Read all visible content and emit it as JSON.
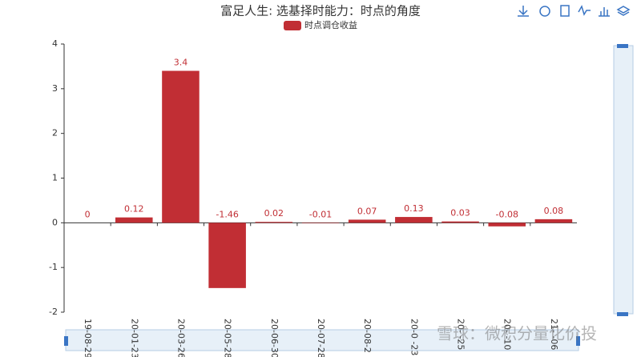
{
  "chart_data": {
    "type": "bar",
    "title": "富足人生: 选基择时能力：时点的角度",
    "categories": [
      "19-08-29",
      "20-01-23",
      "20-03-26",
      "20-05-28",
      "20-06-30",
      "20-07-28",
      "20-08-2",
      "20-0 -23",
      "20-  -25",
      "20-  -10",
      "21-  -06"
    ],
    "series": [
      {
        "name": "时点调仓收益",
        "color": "#c12e34",
        "values": [
          0,
          0.12,
          3.4,
          -1.46,
          0.02,
          -0.01,
          0.07,
          0.13,
          0.03,
          -0.08,
          0.08
        ]
      }
    ],
    "ylim": [
      -2,
      4
    ],
    "yticks": [
      -2,
      -1,
      0,
      1,
      2,
      3,
      4
    ],
    "grid": false,
    "legend": "top"
  },
  "watermark": "雪球：微积分量化价投"
}
